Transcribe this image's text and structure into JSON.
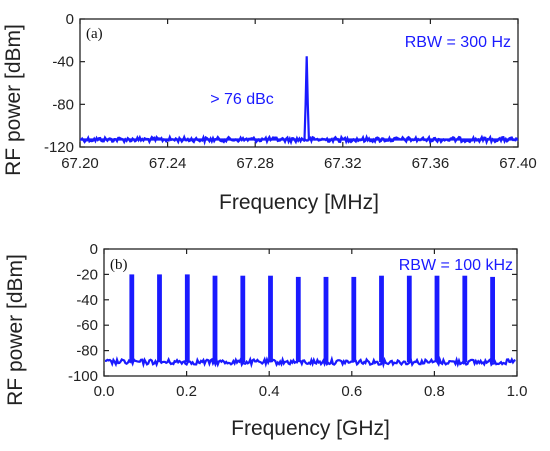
{
  "chart_data": [
    {
      "type": "line",
      "panel_label": "(a)",
      "rbw_label": "RBW = 300 Hz",
      "annotation": "> 76 dBc",
      "xlabel": "Frequency [MHz]",
      "ylabel": "RF power [dBm]",
      "xlim": [
        67.2,
        67.4
      ],
      "ylim": [
        -120,
        0
      ],
      "xticks": [
        "67.20",
        "67.24",
        "67.28",
        "67.32",
        "67.36",
        "67.40"
      ],
      "yticks": [
        "0",
        "-40",
        "-80",
        "-120"
      ],
      "grid": false,
      "color": "#1a1aff",
      "noise_floor_dbm": -113,
      "series": [
        {
          "x": [
            67.2,
            67.3025,
            67.303,
            67.3035,
            67.304,
            67.3045,
            67.4
          ],
          "y": [
            -113,
            -113,
            -80,
            -35,
            -80,
            -113,
            -113
          ]
        }
      ]
    },
    {
      "type": "line",
      "panel_label": "(b)",
      "rbw_label": "RBW = 100 kHz",
      "xlabel": "Frequency [GHz]",
      "ylabel": "RF power [dBm]",
      "xlim": [
        0.0,
        1.0
      ],
      "ylim": [
        -100,
        0
      ],
      "xticks": [
        "0.0",
        "0.2",
        "0.4",
        "0.6",
        "0.8",
        "1.0"
      ],
      "yticks": [
        "0",
        "-20",
        "-40",
        "-60",
        "-80",
        "-100"
      ],
      "grid": false,
      "color": "#1a1aff",
      "noise_floor_dbm": -89,
      "series": [
        {
          "x": [
            0.0672,
            0.1344,
            0.2016,
            0.2688,
            0.336,
            0.4032,
            0.4704,
            0.5376,
            0.6048,
            0.672,
            0.7392,
            0.8064,
            0.8736,
            0.9408
          ],
          "y": [
            -20,
            -20,
            -20,
            -21,
            -21,
            -21,
            -22,
            -22,
            -22,
            -21,
            -21,
            -21,
            -21,
            -22
          ]
        }
      ]
    }
  ]
}
